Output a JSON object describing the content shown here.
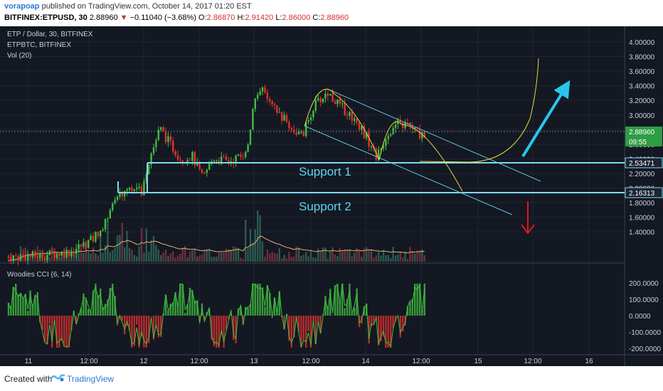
{
  "header": {
    "author": "vorapoap",
    "published_text": "published on TradingView.com, October 14, 2017 01:20 EST",
    "symbol_line": "BITFINEX:ETPUSD, 30",
    "last_price": "2.88960",
    "change_arrow": "▼",
    "change_text": "−0.11040 (−3.68%)",
    "ohlc": [
      {
        "label": "O:",
        "value": "2.86870"
      },
      {
        "label": "H:",
        "value": "2.91420"
      },
      {
        "label": "L:",
        "value": "2.86000"
      },
      {
        "label": "C:",
        "value": "2.88960"
      }
    ]
  },
  "legend": {
    "main": "ETP / Dollar, 30, BITFINEX",
    "compare": "ETPBTC, BITFINEX",
    "volume": "Vol (20)",
    "cci": "Woodies CCI (6, 14)"
  },
  "price_axis": [
    "4.00000",
    "3.80000",
    "3.60000",
    "3.40000",
    "3.20000",
    "3.00000",
    "2.80000",
    "2.60000",
    "2.40000",
    "2.20000",
    "2.00000",
    "1.80000",
    "1.60000",
    "1.40000"
  ],
  "cci_axis": [
    "200.0000",
    "100.0000",
    "0.0000",
    "-100.0000",
    "-200.0000"
  ],
  "price_tags": [
    {
      "value": "2.88960",
      "color": "#2e9d44"
    },
    {
      "value": "09:55",
      "color": "#2e9d44"
    },
    {
      "value": "2.53471",
      "color": "#1e2430"
    },
    {
      "value": "2.16313",
      "color": "#1e2430"
    }
  ],
  "time_axis": [
    "11",
    "12:00",
    "12",
    "12:00",
    "13",
    "12:00",
    "14",
    "12:00",
    "15",
    "12:00",
    "16"
  ],
  "annotations": {
    "support1": "Support 1",
    "support2": "Support 2"
  },
  "colors": {
    "up": "#26a69a",
    "upgreen": "#3fbf3f",
    "down": "#e0322f",
    "support_line": "#7fd9f2",
    "channel": "#5cc6d6",
    "curve": "#e5d83a",
    "up_arrow": "#29c6ec",
    "down_arrow": "#e0161b"
  },
  "footer": {
    "created_with": "Created with",
    "brand": "TradingView"
  },
  "chart_data": {
    "type": "candlestick",
    "symbol": "BITFINEX:ETPUSD, 30",
    "x": [
      "11",
      "12:00",
      "12",
      "12:00",
      "13",
      "12:00",
      "14",
      "12:00"
    ],
    "approx_close": [
      1.42,
      1.55,
      2.2,
      2.48,
      3.3,
      3.35,
      2.55,
      2.89
    ],
    "support_levels": [
      2.53471,
      2.16313
    ],
    "last": 2.8896,
    "ylim": [
      1.33,
      4.1
    ],
    "cci_ylim": [
      -250,
      250
    ]
  }
}
